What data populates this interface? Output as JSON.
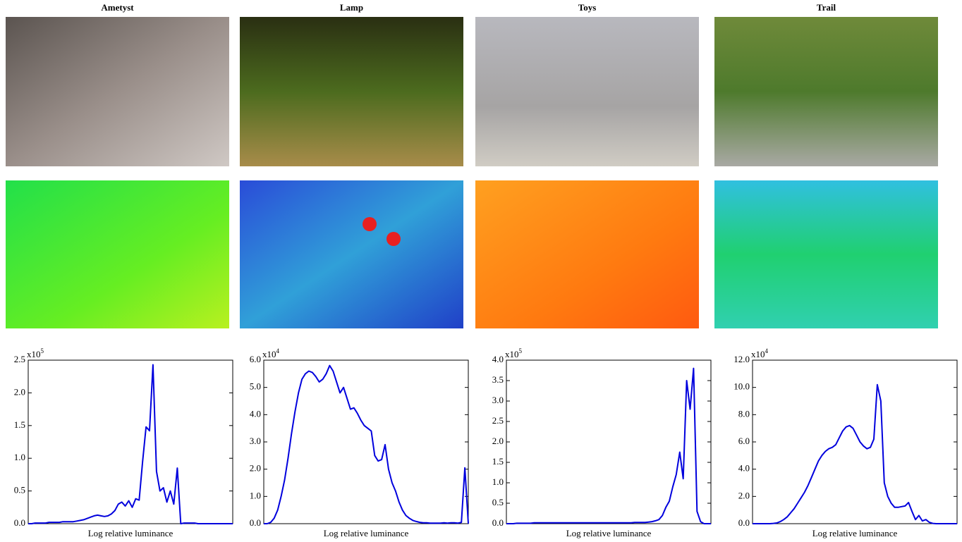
{
  "chart_data": [
    {
      "type": "line",
      "title": "Ametyst",
      "x_label": "Log relative luminance",
      "y_scale": {
        "base": "x10",
        "exponent": "5"
      },
      "color": "#0000dd",
      "ylim": [
        0,
        2.5
      ],
      "yticks": [
        {
          "value": 0,
          "label": "0.0"
        },
        0.5,
        {
          "value": 1,
          "label": "1.0"
        },
        1.5,
        {
          "value": 2,
          "label": "2.0"
        },
        2.5
      ],
      "values": [
        0,
        0,
        0.01,
        0.01,
        0.01,
        0.01,
        0.02,
        0.02,
        0.02,
        0.02,
        0.03,
        0.03,
        0.03,
        0.03,
        0.04,
        0.05,
        0.06,
        0.08,
        0.1,
        0.12,
        0.13,
        0.12,
        0.11,
        0.12,
        0.15,
        0.2,
        0.3,
        0.33,
        0.27,
        0.35,
        0.25,
        0.38,
        0.36,
        0.95,
        1.48,
        1.42,
        2.43,
        0.8,
        0.5,
        0.55,
        0.33,
        0.5,
        0.3,
        0.85,
        0,
        0.01,
        0.01,
        0.01,
        0.01,
        0,
        0,
        0,
        0,
        0,
        0,
        0,
        0,
        0,
        0,
        0
      ]
    },
    {
      "type": "line",
      "title": "Lamp",
      "x_label": "Log relative luminance",
      "y_scale": {
        "base": "x10",
        "exponent": "4"
      },
      "color": "#0000dd",
      "ylim": [
        0,
        6
      ],
      "yticks": [
        {
          "value": 0,
          "label": "0.0"
        },
        {
          "value": 1,
          "label": "1.0"
        },
        {
          "value": 2,
          "label": "2.0"
        },
        {
          "value": 3,
          "label": "3.0"
        },
        {
          "value": 4,
          "label": "4.0"
        },
        {
          "value": 5,
          "label": "5.0"
        },
        {
          "value": 6,
          "label": "6.0"
        }
      ],
      "values": [
        0,
        0,
        0.05,
        0.2,
        0.5,
        1.0,
        1.6,
        2.4,
        3.3,
        4.1,
        4.8,
        5.3,
        5.5,
        5.6,
        5.55,
        5.4,
        5.2,
        5.3,
        5.5,
        5.8,
        5.6,
        5.2,
        4.8,
        5.0,
        4.6,
        4.2,
        4.25,
        4.05,
        3.8,
        3.6,
        3.5,
        3.4,
        2.5,
        2.3,
        2.35,
        2.9,
        2.0,
        1.5,
        1.2,
        0.8,
        0.5,
        0.3,
        0.2,
        0.12,
        0.08,
        0.05,
        0.03,
        0.03,
        0.02,
        0.02,
        0.02,
        0.02,
        0.03,
        0.02,
        0.03,
        0.03,
        0.02,
        0.05,
        2.05,
        0
      ]
    },
    {
      "type": "line",
      "title": "Toys",
      "x_label": "Log relative luminance",
      "y_scale": {
        "base": "x10",
        "exponent": "5"
      },
      "color": "#0000dd",
      "ylim": [
        0,
        4
      ],
      "yticks": [
        {
          "value": 0,
          "label": "0.0"
        },
        0.5,
        {
          "value": 1,
          "label": "1.0"
        },
        1.5,
        {
          "value": 2,
          "label": "2.0"
        },
        2.5,
        {
          "value": 3,
          "label": "3.0"
        },
        3.5,
        {
          "value": 4,
          "label": "4.0"
        }
      ],
      "values": [
        0,
        0,
        0,
        0.01,
        0.01,
        0.01,
        0.01,
        0.01,
        0.02,
        0.02,
        0.02,
        0.02,
        0.02,
        0.02,
        0.02,
        0.02,
        0.02,
        0.02,
        0.02,
        0.02,
        0.02,
        0.02,
        0.02,
        0.02,
        0.02,
        0.02,
        0.02,
        0.02,
        0.02,
        0.02,
        0.02,
        0.02,
        0.02,
        0.02,
        0.02,
        0.02,
        0.02,
        0.03,
        0.03,
        0.03,
        0.03,
        0.04,
        0.05,
        0.07,
        0.1,
        0.2,
        0.4,
        0.55,
        0.9,
        1.2,
        1.75,
        1.1,
        3.5,
        2.8,
        3.8,
        0.3,
        0.05,
        0,
        0,
        0
      ]
    },
    {
      "type": "line",
      "title": "Trail",
      "x_label": "Log relative luminance",
      "y_scale": {
        "base": "x10",
        "exponent": "4"
      },
      "color": "#0000dd",
      "ylim": [
        0,
        12
      ],
      "yticks": [
        {
          "value": 0,
          "label": "0.0"
        },
        {
          "value": 2,
          "label": "2.0"
        },
        {
          "value": 4,
          "label": "4.0"
        },
        {
          "value": 6,
          "label": "6.0"
        },
        {
          "value": 8,
          "label": "8.0"
        },
        {
          "value": 10,
          "label": "10.0"
        },
        {
          "value": 12,
          "label": "12.0"
        }
      ],
      "values": [
        0,
        0,
        0,
        0,
        0,
        0,
        0.02,
        0.05,
        0.15,
        0.3,
        0.5,
        0.8,
        1.1,
        1.5,
        1.9,
        2.3,
        2.8,
        3.4,
        4.0,
        4.6,
        5.0,
        5.3,
        5.5,
        5.6,
        5.8,
        6.3,
        6.8,
        7.1,
        7.2,
        7.0,
        6.5,
        6.0,
        5.7,
        5.5,
        5.6,
        6.2,
        10.2,
        9.0,
        3.0,
        2.0,
        1.5,
        1.2,
        1.2,
        1.25,
        1.3,
        1.55,
        0.9,
        0.3,
        0.6,
        0.2,
        0.3,
        0.1,
        0.02,
        0,
        0,
        0,
        0,
        0,
        0,
        0
      ]
    }
  ]
}
